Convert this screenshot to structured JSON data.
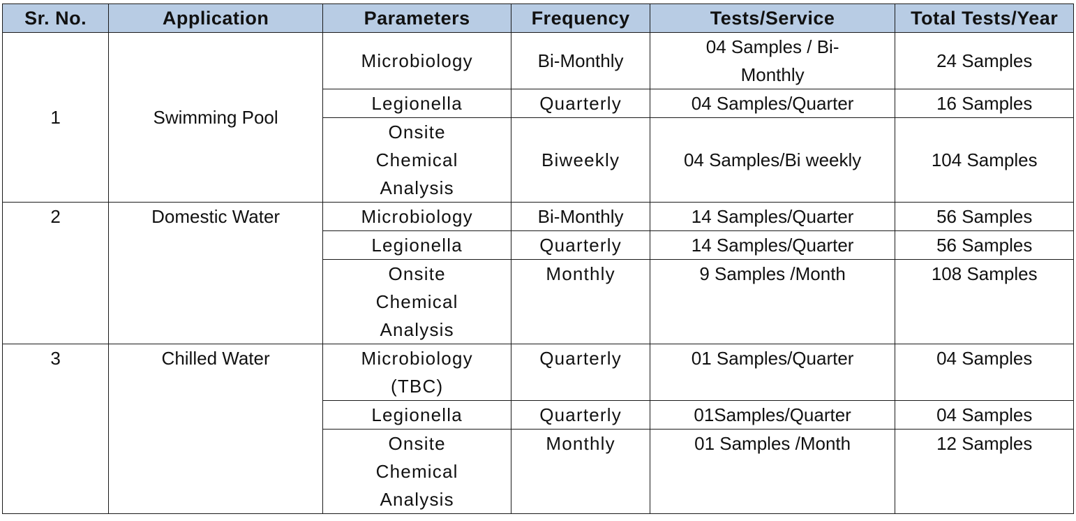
{
  "headers": [
    "Sr. No.",
    "Application",
    "Parameters",
    "Frequency",
    "Tests/Service",
    "Total Tests/Year"
  ],
  "groups": [
    {
      "sr": "1",
      "application": "Swimming Pool",
      "rows": [
        {
          "parameter": "Microbiology",
          "frequency": "Bi-Monthly",
          "tests": "04 Samples / Bi-Monthly",
          "total": "24 Samples"
        },
        {
          "parameter": "Legionella",
          "frequency": "Quarterly",
          "tests": "04 Samples/Quarter",
          "total": "16 Samples"
        },
        {
          "parameter": "Onsite Chemical Analysis",
          "frequency": "Biweekly",
          "tests": "04 Samples/Bi weekly",
          "total": "104 Samples"
        }
      ]
    },
    {
      "sr": "2",
      "application": "Domestic Water",
      "rows": [
        {
          "parameter": "Microbiology",
          "frequency": "Bi-Monthly",
          "tests": "14 Samples/Quarter",
          "total": "56 Samples"
        },
        {
          "parameter": "Legionella",
          "frequency": "Quarterly",
          "tests": "14 Samples/Quarter",
          "total": "56 Samples"
        },
        {
          "parameter": "Onsite Chemical Analysis",
          "frequency": "Monthly",
          "tests": "9 Samples /Month",
          "total": "108 Samples"
        }
      ]
    },
    {
      "sr": "3",
      "application": "Chilled Water",
      "rows": [
        {
          "parameter": "Microbiology (TBC)",
          "frequency": "Quarterly",
          "tests": "01 Samples/Quarter",
          "total": "04 Samples"
        },
        {
          "parameter": "Legionella",
          "frequency": "Quarterly",
          "tests": "01Samples/Quarter",
          "total": "04 Samples"
        },
        {
          "parameter": "Onsite Chemical Analysis",
          "frequency": "Monthly",
          "tests": "01 Samples /Month",
          "total": "12 Samples"
        }
      ]
    }
  ],
  "colors": {
    "header_background": "#b8cce4",
    "border": "#1a1a1a",
    "text": "#111111"
  }
}
